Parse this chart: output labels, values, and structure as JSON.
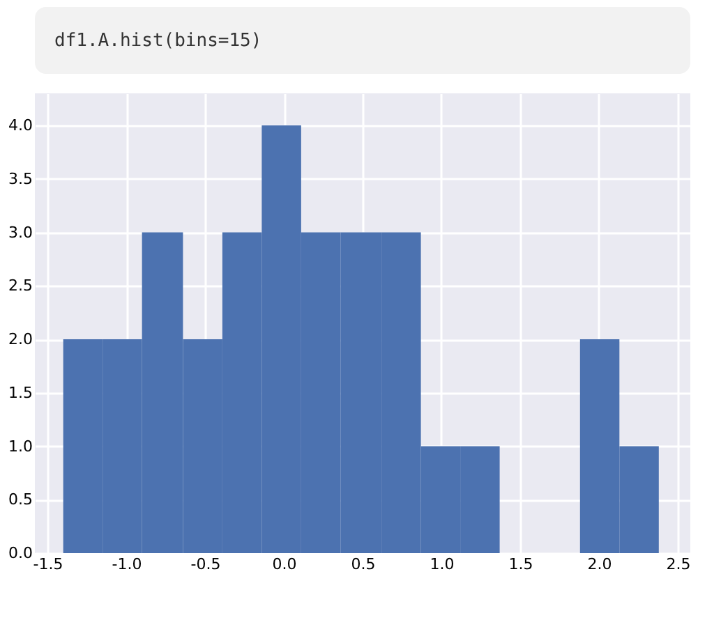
{
  "chart_data": {
    "type": "histogram",
    "title": "df1.A.hist(bins=15)",
    "bins": [
      -1.4,
      -1.15,
      -0.9,
      -0.64,
      -0.39,
      -0.14,
      0.11,
      0.36,
      0.62,
      0.87,
      1.12,
      1.37,
      1.88,
      2.13,
      2.38
    ],
    "values": [
      2,
      2,
      3,
      2,
      3,
      4,
      3,
      3,
      3,
      1,
      1,
      0,
      2,
      1
    ],
    "color": "#4c72b0",
    "xlim": [
      -1.58,
      2.58
    ],
    "xticks": [
      -1.5,
      {
        "value": -1,
        "label": "-1.0"
      },
      -0.5,
      {
        "value": 0,
        "label": "0.0"
      },
      0.5,
      {
        "value": 1,
        "label": "1.0"
      },
      1.5,
      {
        "value": 2,
        "label": "2.0"
      },
      2.5
    ],
    "ylim": [
      0,
      4.3
    ],
    "yticks": [
      {
        "value": 0,
        "label": "0.0"
      },
      0.5,
      {
        "value": 1,
        "label": "1.0"
      },
      1.5,
      {
        "value": 2,
        "label": "2.0"
      },
      2.5,
      {
        "value": 3,
        "label": "3.0"
      },
      3.5,
      {
        "value": 4,
        "label": "4.0"
      }
    ],
    "grid": true
  }
}
